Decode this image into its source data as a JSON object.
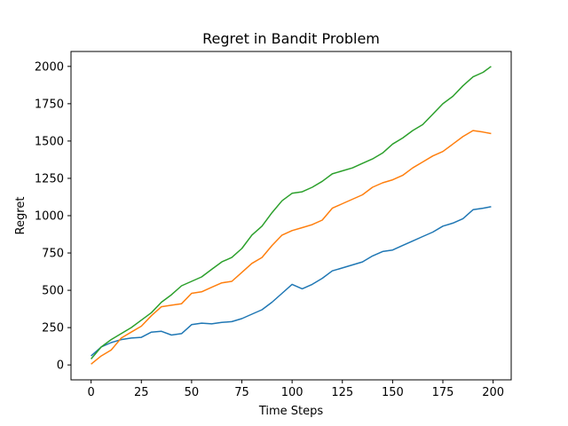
{
  "chart_data": {
    "type": "line",
    "title": "Regret in Bandit Problem",
    "xlabel": "Time Steps",
    "ylabel": "Regret",
    "xlim": [
      -10,
      209
    ],
    "ylim": [
      -100,
      2100
    ],
    "x_ticks": [
      0,
      25,
      50,
      75,
      100,
      125,
      150,
      175,
      200
    ],
    "y_ticks": [
      0,
      250,
      500,
      750,
      1000,
      1250,
      1500,
      1750,
      2000
    ],
    "x_tick_labels": [
      "0",
      "25",
      "50",
      "75",
      "100",
      "125",
      "150",
      "175",
      "200"
    ],
    "y_tick_labels": [
      "0",
      "250",
      "500",
      "750",
      "1000",
      "1250",
      "1500",
      "1750",
      "2000"
    ],
    "grid": false,
    "legend": "none",
    "series": [
      {
        "color": "#1f77b4",
        "x": [
          0,
          5,
          10,
          15,
          20,
          25,
          30,
          35,
          40,
          45,
          50,
          55,
          60,
          65,
          70,
          75,
          80,
          85,
          90,
          95,
          100,
          105,
          110,
          115,
          120,
          125,
          130,
          135,
          140,
          145,
          150,
          155,
          160,
          165,
          170,
          175,
          180,
          185,
          190,
          195,
          199
        ],
        "y": [
          60,
          120,
          150,
          170,
          180,
          185,
          220,
          225,
          200,
          210,
          270,
          280,
          275,
          285,
          290,
          310,
          340,
          370,
          420,
          480,
          540,
          510,
          540,
          580,
          630,
          650,
          670,
          690,
          730,
          760,
          770,
          800,
          830,
          860,
          890,
          930,
          950,
          980,
          1040,
          1050,
          1060
        ]
      },
      {
        "color": "#ff7f0e",
        "x": [
          0,
          5,
          10,
          15,
          20,
          25,
          30,
          35,
          40,
          45,
          50,
          55,
          60,
          65,
          70,
          75,
          80,
          85,
          90,
          95,
          100,
          105,
          110,
          115,
          120,
          125,
          130,
          135,
          140,
          145,
          150,
          155,
          160,
          165,
          170,
          175,
          180,
          185,
          190,
          195,
          199
        ],
        "y": [
          5,
          60,
          100,
          180,
          220,
          260,
          330,
          390,
          400,
          410,
          480,
          490,
          520,
          550,
          560,
          620,
          680,
          720,
          800,
          870,
          900,
          920,
          940,
          970,
          1050,
          1080,
          1110,
          1140,
          1190,
          1220,
          1240,
          1270,
          1320,
          1360,
          1400,
          1430,
          1480,
          1530,
          1570,
          1560,
          1550
        ]
      },
      {
        "color": "#2ca02c",
        "x": [
          0,
          5,
          10,
          15,
          20,
          25,
          30,
          35,
          40,
          45,
          50,
          55,
          60,
          65,
          70,
          75,
          80,
          85,
          90,
          95,
          100,
          105,
          110,
          115,
          120,
          125,
          130,
          135,
          140,
          145,
          150,
          155,
          160,
          165,
          170,
          175,
          180,
          185,
          190,
          195,
          199
        ],
        "y": [
          40,
          120,
          170,
          210,
          250,
          300,
          350,
          420,
          470,
          530,
          560,
          590,
          640,
          690,
          720,
          780,
          870,
          930,
          1020,
          1100,
          1150,
          1160,
          1190,
          1230,
          1280,
          1300,
          1320,
          1350,
          1380,
          1420,
          1480,
          1520,
          1570,
          1610,
          1680,
          1750,
          1800,
          1870,
          1930,
          1960,
          2000
        ]
      }
    ]
  }
}
